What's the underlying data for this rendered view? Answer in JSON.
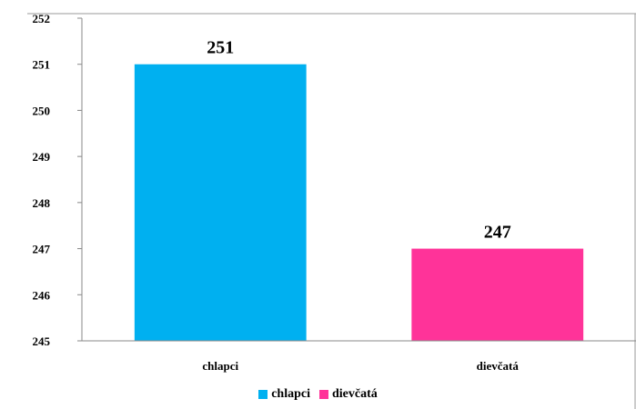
{
  "chart_data": {
    "type": "bar",
    "categories": [
      "chlapci",
      "dievčatá"
    ],
    "values": [
      251,
      247
    ],
    "colors": [
      "#00b0f0",
      "#ff3399"
    ],
    "data_labels": [
      "251",
      "247"
    ],
    "ylim": [
      245,
      252
    ],
    "y_ticks": [
      "245",
      "246",
      "247",
      "248",
      "249",
      "250",
      "251",
      "252"
    ],
    "title": "",
    "xlabel": "",
    "ylabel": "",
    "grid": false,
    "legend_position": "bottom",
    "legend": [
      {
        "label": "chlapci",
        "color": "#00b0f0"
      },
      {
        "label": "dievčatá",
        "color": "#ff3399"
      }
    ]
  }
}
